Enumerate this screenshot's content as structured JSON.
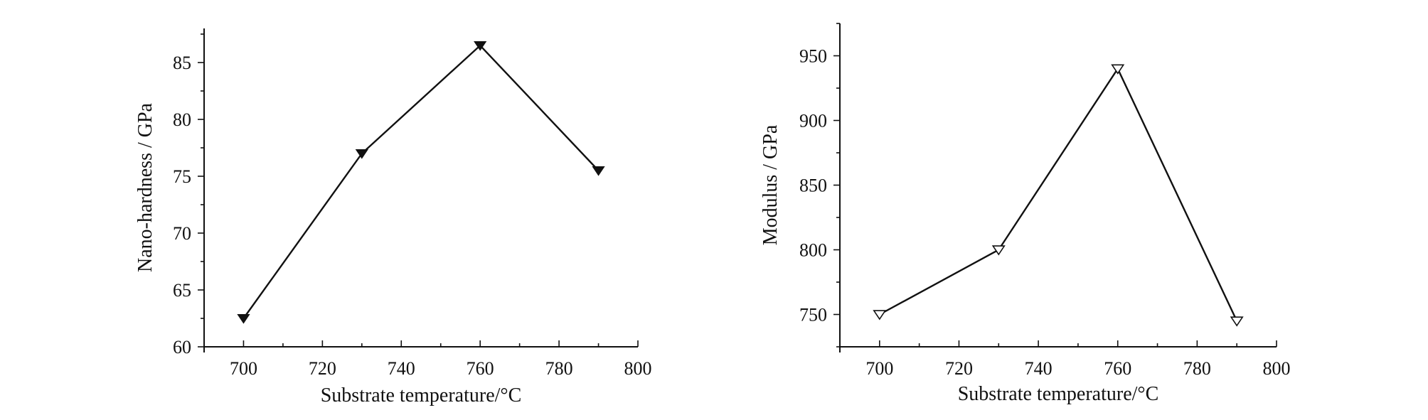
{
  "chart_data": [
    {
      "type": "line",
      "xlabel": "Substrate temperature/°C",
      "ylabel": "Nano-hardness / GPa",
      "xlim": [
        690,
        800
      ],
      "ylim": [
        60,
        88
      ],
      "xticks": [
        700,
        720,
        740,
        760,
        780,
        800
      ],
      "yticks": [
        60,
        65,
        70,
        75,
        80,
        85
      ],
      "x": [
        700,
        730,
        760,
        790
      ],
      "series": [
        {
          "values": [
            62.5,
            77.0,
            86.5,
            75.5
          ],
          "marker": "filled-down-triangle",
          "color": "#111111"
        }
      ],
      "grid": false
    },
    {
      "type": "line",
      "xlabel": "Substrate temperature/°C",
      "ylabel": "Modulus / GPa",
      "xlim": [
        690,
        800
      ],
      "ylim": [
        725,
        975
      ],
      "xticks": [
        700,
        720,
        740,
        760,
        780,
        800
      ],
      "yticks": [
        750,
        800,
        850,
        900,
        950
      ],
      "x": [
        700,
        730,
        760,
        790
      ],
      "series": [
        {
          "values": [
            750,
            800,
            940,
            745
          ],
          "marker": "open-down-triangle",
          "color": "#111111"
        }
      ],
      "grid": false
    }
  ]
}
